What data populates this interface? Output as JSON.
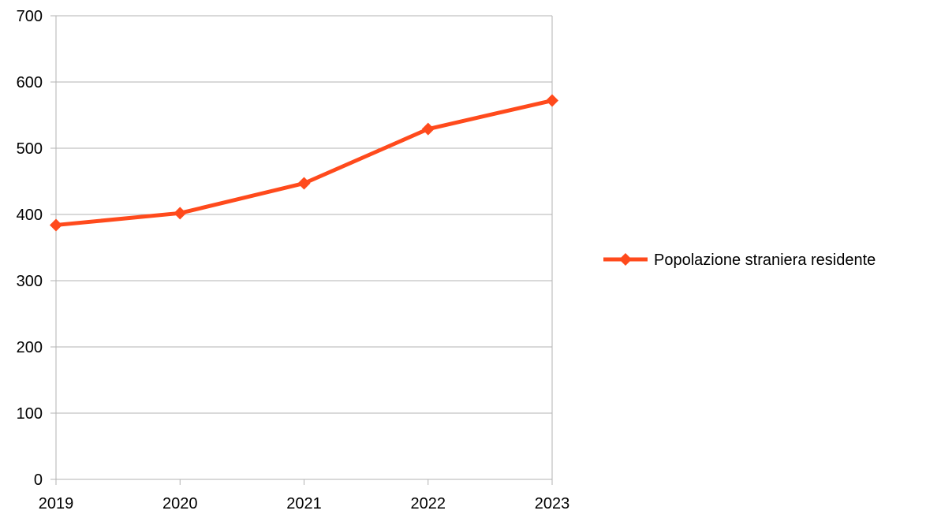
{
  "chart_data": {
    "type": "line",
    "title": "",
    "xlabel": "",
    "ylabel": "",
    "categories": [
      "2019",
      "2020",
      "2021",
      "2022",
      "2023"
    ],
    "series": [
      {
        "name": "Popolazione straniera residente",
        "values": [
          384,
          402,
          447,
          529,
          572
        ],
        "color": "#ff4a1c",
        "marker": "diamond"
      }
    ],
    "ylim": [
      0,
      700
    ],
    "yticks": [
      0,
      100,
      200,
      300,
      400,
      500,
      600,
      700
    ],
    "grid": "horizontal",
    "legend_position": "right"
  }
}
